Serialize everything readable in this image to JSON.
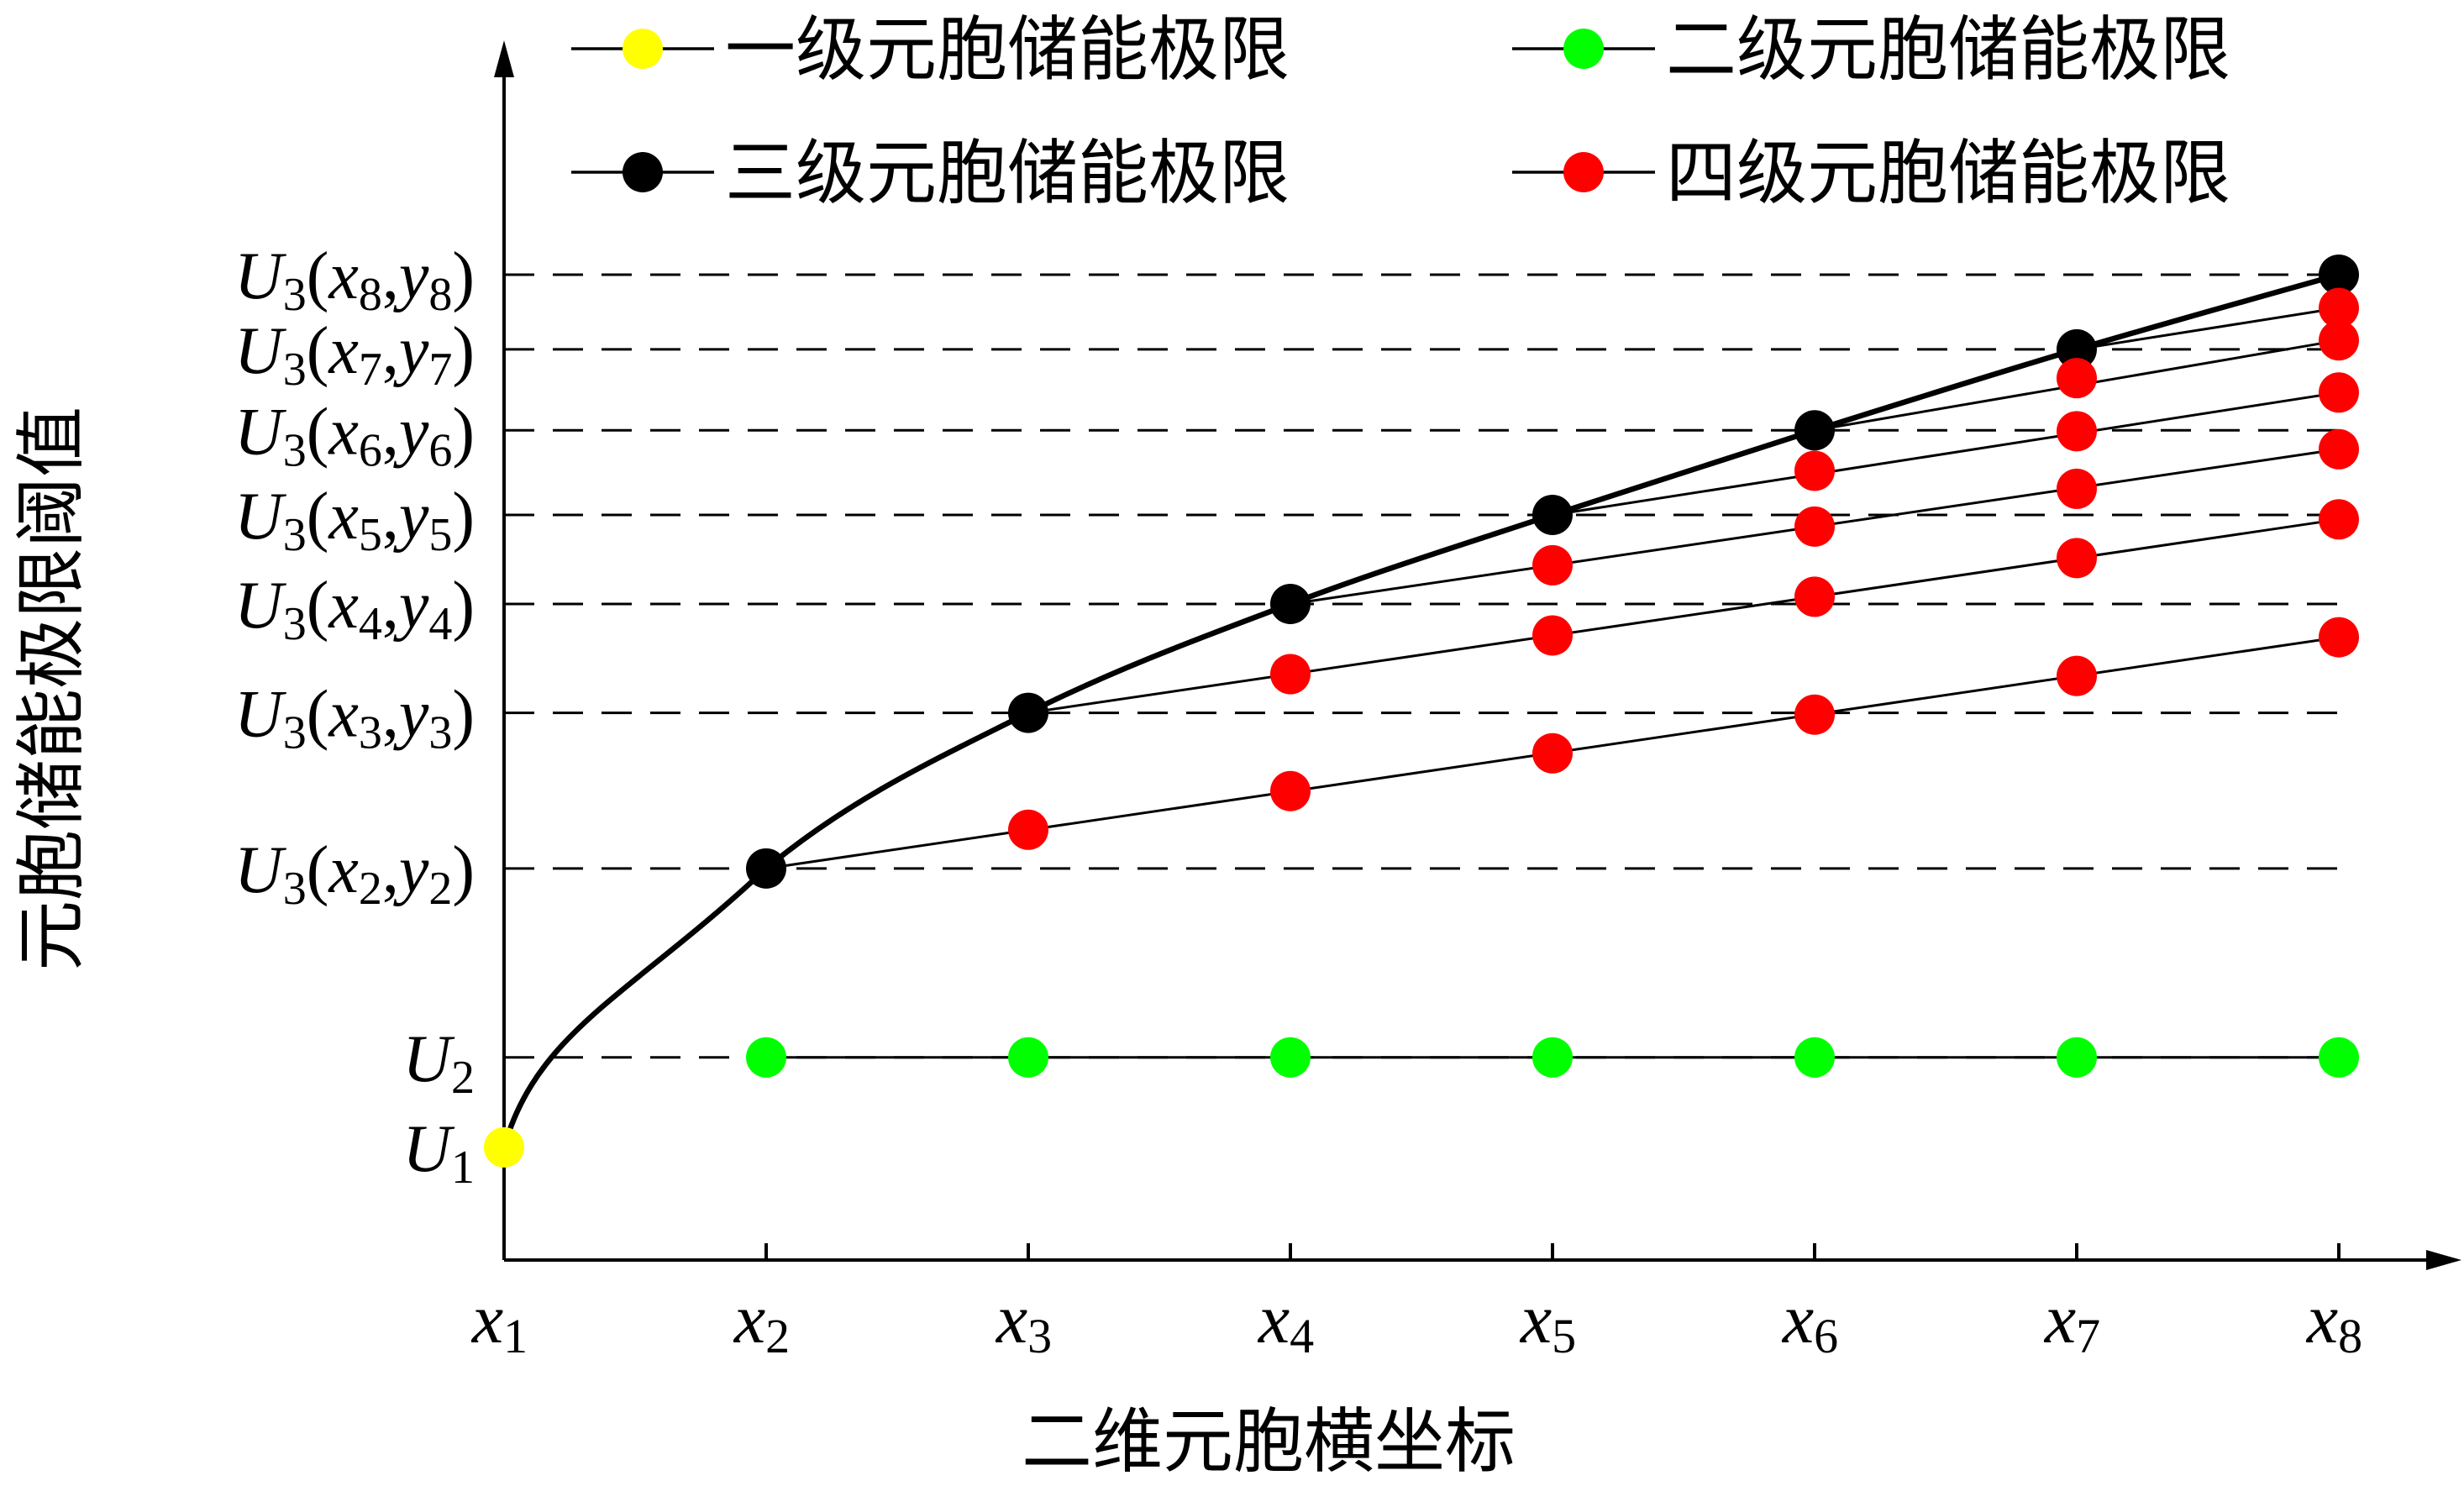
{
  "chart_data": {
    "type": "scatter",
    "xlabel": "二维元胞横坐标",
    "ylabel": "元胞储能极限阈值",
    "categories": [
      {
        "var": "x",
        "sub": "1"
      },
      {
        "var": "x",
        "sub": "2"
      },
      {
        "var": "x",
        "sub": "3"
      },
      {
        "var": "x",
        "sub": "4"
      },
      {
        "var": "x",
        "sub": "5"
      },
      {
        "var": "x",
        "sub": "6"
      },
      {
        "var": "x",
        "sub": "7"
      },
      {
        "var": "x",
        "sub": "8"
      }
    ],
    "ylim": [
      0,
      100
    ],
    "y_scale_note": "relative estimate; y axis has no numeric ticks",
    "y_tick_labels": [
      {
        "value": 3,
        "var": "U",
        "sub": "1"
      },
      {
        "value": 13,
        "var": "U",
        "sub": "2"
      },
      {
        "value": 34,
        "var": "U",
        "sub": "3",
        "xsub": "2",
        "ysub": "2"
      },
      {
        "value": 51.3,
        "var": "U",
        "sub": "3",
        "xsub": "3",
        "ysub": "3"
      },
      {
        "value": 63.4,
        "var": "U",
        "sub": "3",
        "xsub": "4",
        "ysub": "4"
      },
      {
        "value": 73.3,
        "var": "U",
        "sub": "3",
        "xsub": "5",
        "ysub": "5"
      },
      {
        "value": 82.7,
        "var": "U",
        "sub": "3",
        "xsub": "6",
        "ysub": "6"
      },
      {
        "value": 91.7,
        "var": "U",
        "sub": "3",
        "xsub": "7",
        "ysub": "7"
      },
      {
        "value": 100,
        "var": "U",
        "sub": "3",
        "xsub": "8",
        "ysub": "8"
      }
    ],
    "series": [
      {
        "name": "一级元胞储能极限",
        "color": "#ffff00",
        "points": [
          [
            1,
            3
          ]
        ]
      },
      {
        "name": "二级元胞储能极限",
        "color": "#00ff00",
        "points": [
          [
            2,
            13
          ],
          [
            3,
            13
          ],
          [
            4,
            13
          ],
          [
            5,
            13
          ],
          [
            6,
            13
          ],
          [
            7,
            13
          ],
          [
            8,
            13
          ]
        ]
      },
      {
        "name": "三级元胞储能极限",
        "color": "#000000",
        "points": [
          [
            2,
            34
          ],
          [
            3,
            51.3
          ],
          [
            4,
            63.4
          ],
          [
            5,
            73.3
          ],
          [
            6,
            82.7
          ],
          [
            7,
            91.7
          ],
          [
            8,
            100
          ]
        ]
      },
      {
        "name": "四级元胞储能极限",
        "color": "#ff0000",
        "points": [
          [
            3,
            38.3
          ],
          [
            4,
            42.6
          ],
          [
            5,
            46.8
          ],
          [
            6,
            51.1
          ],
          [
            7,
            55.4
          ],
          [
            8,
            59.7
          ],
          [
            4,
            55.6
          ],
          [
            5,
            59.9
          ],
          [
            6,
            64.2
          ],
          [
            7,
            68.5
          ],
          [
            8,
            72.8
          ],
          [
            5,
            67.7
          ],
          [
            6,
            72.0
          ],
          [
            7,
            76.2
          ],
          [
            8,
            80.6
          ],
          [
            6,
            78.2
          ],
          [
            7,
            82.6
          ],
          [
            8,
            86.9
          ],
          [
            7,
            88.5
          ],
          [
            8,
            92.7
          ],
          [
            8,
            96.3
          ]
        ]
      }
    ],
    "connector_lines": [
      [
        [
          2,
          34
        ],
        [
          8,
          59.7
        ]
      ],
      [
        [
          3,
          51.3
        ],
        [
          8,
          72.8
        ]
      ],
      [
        [
          4,
          63.4
        ],
        [
          8,
          80.6
        ]
      ],
      [
        [
          5,
          73.3
        ],
        [
          8,
          86.9
        ]
      ],
      [
        [
          6,
          82.7
        ],
        [
          8,
          92.7
        ]
      ],
      [
        [
          7,
          91.7
        ],
        [
          8,
          96.3
        ]
      ],
      [
        [
          2,
          13
        ],
        [
          8,
          13
        ]
      ]
    ],
    "envelope_curve": {
      "color": "#000000",
      "from": [
        1,
        3
      ],
      "through": [
        [
          2,
          34
        ],
        [
          3,
          51.3
        ],
        [
          4,
          63.4
        ],
        [
          5,
          73.3
        ],
        [
          6,
          82.7
        ],
        [
          7,
          91.7
        ],
        [
          8,
          100
        ]
      ]
    },
    "legend_position": "top",
    "grid": false
  }
}
